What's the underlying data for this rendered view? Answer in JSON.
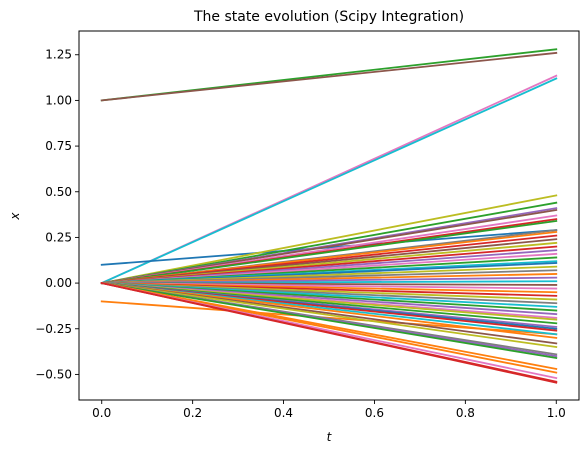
{
  "chart_data": {
    "type": "line",
    "title": "The state evolution (Scipy Integration)",
    "xlabel": "t",
    "ylabel": "x",
    "xlim": [
      -0.05,
      1.05
    ],
    "ylim": [
      -0.64,
      1.38
    ],
    "xticks": [
      0.0,
      0.2,
      0.4,
      0.6,
      0.8,
      1.0
    ],
    "xtick_labels": [
      "0.0",
      "0.2",
      "0.4",
      "0.6",
      "0.8",
      "1.0"
    ],
    "yticks": [
      -0.5,
      -0.25,
      0.0,
      0.25,
      0.5,
      0.75,
      1.0,
      1.25
    ],
    "ytick_labels": [
      "−0.50",
      "−0.25",
      "0.00",
      "0.25",
      "0.50",
      "0.75",
      "1.00",
      "1.25"
    ],
    "grid": false,
    "legend": "none",
    "colors": [
      "#1f77b4",
      "#ff7f0e",
      "#2ca02c",
      "#d62728",
      "#9467bd",
      "#8c564b",
      "#e377c2",
      "#7f7f7f",
      "#bcbd22",
      "#17becf"
    ],
    "x": [
      0.0,
      1.0
    ],
    "series": [
      {
        "values": [
          1.0,
          1.28
        ],
        "color": "#2ca02c"
      },
      {
        "values": [
          1.0,
          1.26
        ],
        "color": "#8c564b"
      },
      {
        "values": [
          0.0,
          1.135
        ],
        "color": "#e377c2"
      },
      {
        "values": [
          0.0,
          1.12
        ],
        "color": "#17becf"
      },
      {
        "values": [
          0.1,
          0.29
        ],
        "color": "#1f77b4"
      },
      {
        "values": [
          -0.1,
          -0.28
        ],
        "color": "#ff7f0e"
      },
      {
        "values": [
          0.0,
          0.48
        ],
        "color": "#bcbd22"
      },
      {
        "values": [
          0.0,
          0.44
        ],
        "color": "#2ca02c"
      },
      {
        "values": [
          0.0,
          0.41
        ],
        "color": "#9467bd"
      },
      {
        "values": [
          0.0,
          0.4
        ],
        "color": "#8c564b"
      },
      {
        "values": [
          0.0,
          0.37
        ],
        "color": "#e377c2"
      },
      {
        "values": [
          0.0,
          0.35
        ],
        "color": "#d62728"
      },
      {
        "values": [
          0.0,
          0.34
        ],
        "color": "#2ca02c"
      },
      {
        "values": [
          0.0,
          0.29
        ],
        "color": "#7f7f7f"
      },
      {
        "values": [
          0.0,
          0.28
        ],
        "color": "#ff7f0e"
      },
      {
        "values": [
          0.0,
          0.26
        ],
        "color": "#d62728"
      },
      {
        "values": [
          0.0,
          0.24
        ],
        "color": "#8c564b"
      },
      {
        "values": [
          0.0,
          0.22
        ],
        "color": "#bcbd22"
      },
      {
        "values": [
          0.0,
          0.2
        ],
        "color": "#d62728"
      },
      {
        "values": [
          0.0,
          0.18
        ],
        "color": "#9467bd"
      },
      {
        "values": [
          0.0,
          0.16
        ],
        "color": "#e377c2"
      },
      {
        "values": [
          0.0,
          0.14
        ],
        "color": "#2ca02c"
      },
      {
        "values": [
          0.0,
          0.12
        ],
        "color": "#17becf"
      },
      {
        "values": [
          0.0,
          0.11
        ],
        "color": "#1f77b4"
      },
      {
        "values": [
          0.0,
          0.09
        ],
        "color": "#bcbd22"
      },
      {
        "values": [
          0.0,
          0.07
        ],
        "color": "#7f7f7f"
      },
      {
        "values": [
          0.0,
          0.05
        ],
        "color": "#ff7f0e"
      },
      {
        "values": [
          0.0,
          0.03
        ],
        "color": "#9467bd"
      },
      {
        "values": [
          0.0,
          0.01
        ],
        "color": "#17becf"
      },
      {
        "values": [
          0.0,
          -0.01
        ],
        "color": "#8c564b"
      },
      {
        "values": [
          0.0,
          -0.03
        ],
        "color": "#e377c2"
      },
      {
        "values": [
          0.0,
          -0.05
        ],
        "color": "#ff7f0e"
      },
      {
        "values": [
          0.0,
          -0.07
        ],
        "color": "#d62728"
      },
      {
        "values": [
          0.0,
          -0.09
        ],
        "color": "#bcbd22"
      },
      {
        "values": [
          0.0,
          -0.11
        ],
        "color": "#7f7f7f"
      },
      {
        "values": [
          0.0,
          -0.13
        ],
        "color": "#17becf"
      },
      {
        "values": [
          0.0,
          -0.15
        ],
        "color": "#2ca02c"
      },
      {
        "values": [
          0.0,
          -0.17
        ],
        "color": "#9467bd"
      },
      {
        "values": [
          0.0,
          -0.19
        ],
        "color": "#e377c2"
      },
      {
        "values": [
          0.0,
          -0.2
        ],
        "color": "#bcbd22"
      },
      {
        "values": [
          0.0,
          -0.22
        ],
        "color": "#2ca02c"
      },
      {
        "values": [
          0.0,
          -0.24
        ],
        "color": "#9467bd"
      },
      {
        "values": [
          0.0,
          -0.25
        ],
        "color": "#1f77b4"
      },
      {
        "values": [
          0.0,
          -0.26
        ],
        "color": "#d62728"
      },
      {
        "values": [
          0.0,
          -0.28
        ],
        "color": "#17becf"
      },
      {
        "values": [
          0.0,
          -0.3
        ],
        "color": "#ff7f0e"
      },
      {
        "values": [
          0.0,
          -0.33
        ],
        "color": "#8c564b"
      },
      {
        "values": [
          0.0,
          -0.35
        ],
        "color": "#bcbd22"
      },
      {
        "values": [
          0.0,
          -0.39
        ],
        "color": "#7f7f7f"
      },
      {
        "values": [
          0.0,
          -0.4
        ],
        "color": "#9467bd"
      },
      {
        "values": [
          0.0,
          -0.41
        ],
        "color": "#2ca02c"
      },
      {
        "values": [
          0.0,
          -0.47
        ],
        "color": "#ff7f0e"
      },
      {
        "values": [
          0.0,
          -0.49
        ],
        "color": "#ff7f0e"
      },
      {
        "values": [
          0.0,
          -0.52
        ],
        "color": "#e377c2"
      },
      {
        "values": [
          0.0,
          -0.54
        ],
        "color": "#d62728"
      },
      {
        "values": [
          0.0,
          -0.545
        ],
        "color": "#d62728"
      }
    ]
  }
}
